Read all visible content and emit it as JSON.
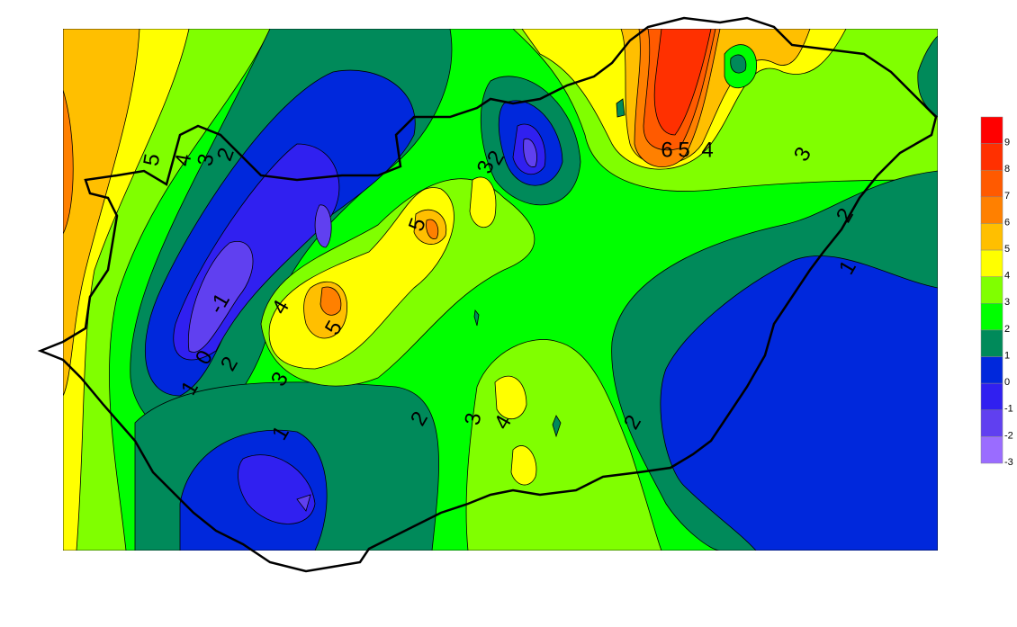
{
  "map": {
    "contour_labels": [
      5,
      4,
      3,
      2,
      2,
      3,
      5,
      6,
      5,
      4,
      3,
      2,
      1,
      4,
      -1,
      5,
      0,
      2,
      1,
      3,
      1,
      2,
      3,
      4,
      2
    ],
    "legend": {
      "levels": [
        9,
        8,
        7,
        6,
        5,
        4,
        3,
        2,
        1,
        0,
        -1,
        -2,
        -3
      ],
      "colors": [
        "#ff0000",
        "#ff3000",
        "#ff5a00",
        "#ff8000",
        "#ffbf00",
        "#ffff00",
        "#80ff00",
        "#00ff00",
        "#008a5a",
        "#0028dc",
        "#3020f0",
        "#6040f0",
        "#9a6cff"
      ]
    }
  }
}
